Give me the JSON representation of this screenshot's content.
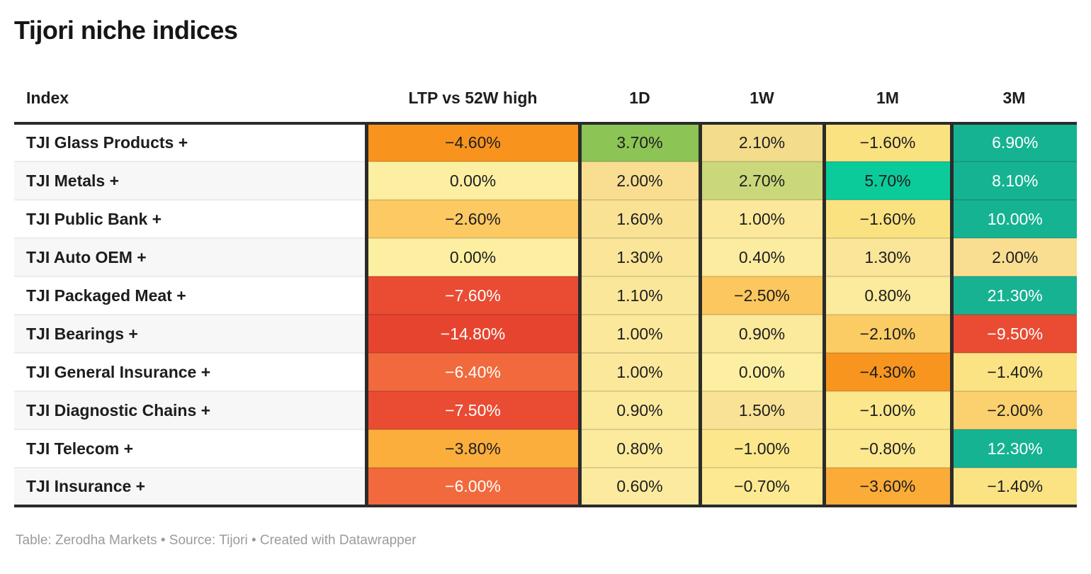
{
  "title": "Tijori niche indices",
  "footer": "Table: Zerodha Markets • Source: Tijori • Created with Datawrapper",
  "table": {
    "columns": [
      {
        "key": "index",
        "label": "Index"
      },
      {
        "key": "ltp-vs-52w-high",
        "label": "LTP vs 52W high"
      },
      {
        "key": "1d",
        "label": "1D"
      },
      {
        "key": "1w",
        "label": "1W"
      },
      {
        "key": "1m",
        "label": "1M"
      },
      {
        "key": "3m",
        "label": "3M"
      }
    ],
    "rows": [
      {
        "index": "TJI Glass Products +",
        "cells": [
          {
            "value": "−4.60%",
            "bg": "#F8941E",
            "text": "dark"
          },
          {
            "value": "3.70%",
            "bg": "#8CC455",
            "text": "dark"
          },
          {
            "value": "2.10%",
            "bg": "#F3DC8B",
            "text": "dark"
          },
          {
            "value": "−1.60%",
            "bg": "#FBE281",
            "text": "dark"
          },
          {
            "value": "6.90%",
            "bg": "#15B392",
            "text": "white"
          }
        ]
      },
      {
        "index": "TJI Metals +",
        "cells": [
          {
            "value": "0.00%",
            "bg": "#FDEFA1",
            "text": "dark"
          },
          {
            "value": "2.00%",
            "bg": "#F9DE92",
            "text": "dark"
          },
          {
            "value": "2.70%",
            "bg": "#CAD87B",
            "text": "dark"
          },
          {
            "value": "5.70%",
            "bg": "#0BCB9B",
            "text": "dark"
          },
          {
            "value": "8.10%",
            "bg": "#15B392",
            "text": "white"
          }
        ]
      },
      {
        "index": "TJI Public Bank +",
        "cells": [
          {
            "value": "−2.60%",
            "bg": "#FCC963",
            "text": "dark"
          },
          {
            "value": "1.60%",
            "bg": "#F9E294",
            "text": "dark"
          },
          {
            "value": "1.00%",
            "bg": "#FBE89B",
            "text": "dark"
          },
          {
            "value": "−1.60%",
            "bg": "#FBE281",
            "text": "dark"
          },
          {
            "value": "10.00%",
            "bg": "#15B392",
            "text": "white"
          }
        ]
      },
      {
        "index": "TJI Auto OEM +",
        "cells": [
          {
            "value": "0.00%",
            "bg": "#FDEFA1",
            "text": "dark"
          },
          {
            "value": "1.30%",
            "bg": "#FAE598",
            "text": "dark"
          },
          {
            "value": "0.40%",
            "bg": "#FCEC9F",
            "text": "dark"
          },
          {
            "value": "1.30%",
            "bg": "#FAE598",
            "text": "dark"
          },
          {
            "value": "2.00%",
            "bg": "#F9DE92",
            "text": "dark"
          }
        ]
      },
      {
        "index": "TJI Packaged Meat +",
        "cells": [
          {
            "value": "−7.60%",
            "bg": "#E94B33",
            "text": "white"
          },
          {
            "value": "1.10%",
            "bg": "#FBE79A",
            "text": "dark"
          },
          {
            "value": "−2.50%",
            "bg": "#FCC75E",
            "text": "dark"
          },
          {
            "value": "0.80%",
            "bg": "#FCEA9D",
            "text": "dark"
          },
          {
            "value": "21.30%",
            "bg": "#17B292",
            "text": "white"
          }
        ]
      },
      {
        "index": "TJI Bearings +",
        "cells": [
          {
            "value": "−14.80%",
            "bg": "#E74430",
            "text": "white"
          },
          {
            "value": "1.00%",
            "bg": "#FBE89B",
            "text": "dark"
          },
          {
            "value": "0.90%",
            "bg": "#FBE99C",
            "text": "dark"
          },
          {
            "value": "−2.10%",
            "bg": "#FCCC64",
            "text": "dark"
          },
          {
            "value": "−9.50%",
            "bg": "#E94B33",
            "text": "white"
          }
        ]
      },
      {
        "index": "TJI General Insurance +",
        "cells": [
          {
            "value": "−6.40%",
            "bg": "#F1693C",
            "text": "white"
          },
          {
            "value": "1.00%",
            "bg": "#FBE89B",
            "text": "dark"
          },
          {
            "value": "0.00%",
            "bg": "#FDEFA1",
            "text": "dark"
          },
          {
            "value": "−4.30%",
            "bg": "#F8951F",
            "text": "dark"
          },
          {
            "value": "−1.40%",
            "bg": "#FBE384",
            "text": "dark"
          }
        ]
      },
      {
        "index": "TJI Diagnostic Chains +",
        "cells": [
          {
            "value": "−7.50%",
            "bg": "#E94B33",
            "text": "white"
          },
          {
            "value": "0.90%",
            "bg": "#FBE99C",
            "text": "dark"
          },
          {
            "value": "1.50%",
            "bg": "#F9E295",
            "text": "dark"
          },
          {
            "value": "−1.00%",
            "bg": "#FCE78C",
            "text": "dark"
          },
          {
            "value": "−2.00%",
            "bg": "#FBD06E",
            "text": "dark"
          }
        ]
      },
      {
        "index": "TJI Telecom +",
        "cells": [
          {
            "value": "−3.80%",
            "bg": "#FBAE3C",
            "text": "dark"
          },
          {
            "value": "0.80%",
            "bg": "#FCEA9D",
            "text": "dark"
          },
          {
            "value": "−1.00%",
            "bg": "#FCE78C",
            "text": "dark"
          },
          {
            "value": "−0.80%",
            "bg": "#FCE88F",
            "text": "dark"
          },
          {
            "value": "12.30%",
            "bg": "#15B392",
            "text": "white"
          }
        ]
      },
      {
        "index": "TJI Insurance +",
        "cells": [
          {
            "value": "−6.00%",
            "bg": "#F1693C",
            "text": "white"
          },
          {
            "value": "0.60%",
            "bg": "#FCEB9E",
            "text": "dark"
          },
          {
            "value": "−0.70%",
            "bg": "#FCE991",
            "text": "dark"
          },
          {
            "value": "−3.60%",
            "bg": "#FAAB38",
            "text": "dark"
          },
          {
            "value": "−1.40%",
            "bg": "#FBE384",
            "text": "dark"
          }
        ]
      }
    ]
  },
  "chart_data": {
    "type": "table",
    "title": "Tijori niche indices",
    "units": "percent",
    "columns": [
      "Index",
      "LTP vs 52W high",
      "1D",
      "1W",
      "1M",
      "3M"
    ],
    "rows": [
      [
        "TJI Glass Products +",
        -4.6,
        3.7,
        2.1,
        -1.6,
        6.9
      ],
      [
        "TJI Metals +",
        0.0,
        2.0,
        2.7,
        5.7,
        8.1
      ],
      [
        "TJI Public Bank +",
        -2.6,
        1.6,
        1.0,
        -1.6,
        10.0
      ],
      [
        "TJI Auto OEM +",
        0.0,
        1.3,
        0.4,
        1.3,
        2.0
      ],
      [
        "TJI Packaged Meat +",
        -7.6,
        1.1,
        -2.5,
        0.8,
        21.3
      ],
      [
        "TJI Bearings +",
        -14.8,
        1.0,
        0.9,
        -2.1,
        -9.5
      ],
      [
        "TJI General Insurance +",
        -6.4,
        1.0,
        0.0,
        -4.3,
        -1.4
      ],
      [
        "TJI Diagnostic Chains +",
        -7.5,
        0.9,
        1.5,
        -1.0,
        -2.0
      ],
      [
        "TJI Telecom +",
        -3.8,
        0.8,
        -1.0,
        -0.8,
        12.3
      ],
      [
        "TJI Insurance +",
        -6.0,
        0.6,
        -0.7,
        -3.6,
        -1.4
      ]
    ],
    "color_scale": {
      "palette": "diverging red-yellow-green-teal",
      "negative_strong": "#E74430",
      "negative_mid": "#F8941E",
      "neutral": "#FDEFA1",
      "positive_mid": "#8CC455",
      "positive_strong": "#15B392"
    }
  }
}
